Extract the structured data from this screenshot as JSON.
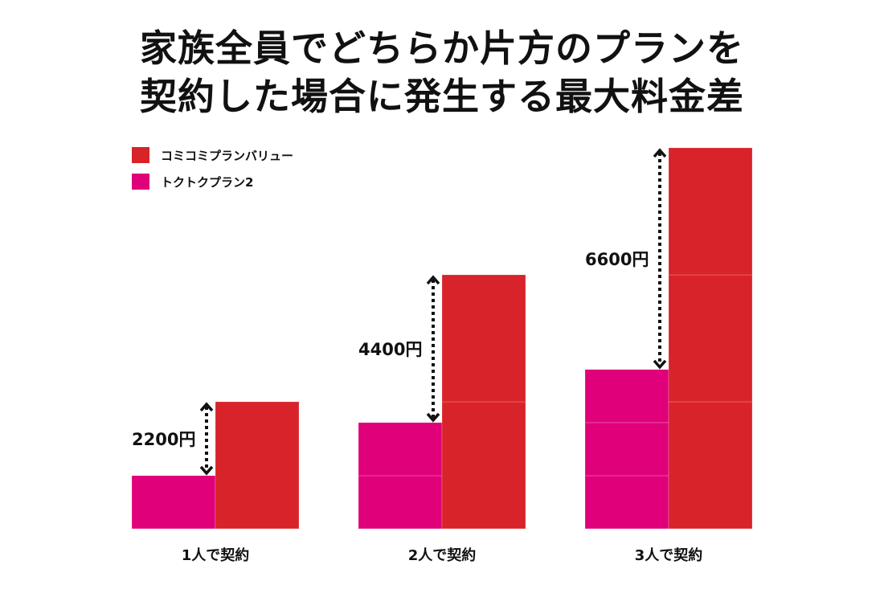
{
  "title_lines": [
    "家族全員でどちらか片方のプランを",
    "契約した場合に発生する最大料金差"
  ],
  "colors": {
    "komikomi": "#d8232a",
    "tokutoku": "#e0007a"
  },
  "chart_data": {
    "type": "bar",
    "stacked_by_person": true,
    "categories": [
      "1人で契約",
      "2人で契約",
      "3人で契約"
    ],
    "series": [
      {
        "name": "トクトクプラン2",
        "values": [
          1580,
          3160,
          4740
        ]
      },
      {
        "name": "コミコミプランバリュー",
        "values": [
          3780,
          7560,
          11340
        ]
      }
    ],
    "annotations": [
      "2200円",
      "4400円",
      "6600円"
    ],
    "legend": "top-left",
    "grid": false
  }
}
